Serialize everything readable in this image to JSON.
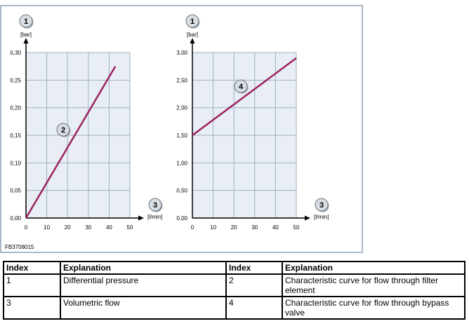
{
  "colors": {
    "frame": "#a9b7c6",
    "plot_bg": "#e8eef4",
    "grid": "#9fb0c4",
    "axis": "#000000",
    "curve": "#9b2262",
    "callout_fill": "#d8dde3",
    "callout_stroke": "#6d747c"
  },
  "figure_code": "FB3708015",
  "chart_data": [
    {
      "type": "line",
      "title": "",
      "ylabel_callout": "1",
      "yunit": "[bar]",
      "xlabel_callout": "3",
      "xunit": "[l/min]",
      "xlim": [
        0,
        50
      ],
      "ylim": [
        0,
        0.3
      ],
      "xticks": [
        "0",
        "10",
        "20",
        "30",
        "40",
        "50"
      ],
      "yticks": [
        "0,00",
        "0,05",
        "0,10",
        "0,15",
        "0,20",
        "0,25",
        "0,30"
      ],
      "grid": true,
      "series": [
        {
          "callout": "2",
          "x": [
            0,
            43
          ],
          "y": [
            0,
            0.275
          ]
        }
      ]
    },
    {
      "type": "line",
      "title": "",
      "ylabel_callout": "1",
      "yunit": "[bar]",
      "xlabel_callout": "3",
      "xunit": "[l/min]",
      "xlim": [
        0,
        50
      ],
      "ylim": [
        0,
        3.0
      ],
      "xticks": [
        "0",
        "10",
        "20",
        "30",
        "40",
        "50"
      ],
      "yticks": [
        "0,00",
        "0,50",
        "1,00",
        "1,50",
        "2,00",
        "2,50",
        "3,00"
      ],
      "grid": true,
      "series": [
        {
          "callout": "4",
          "x": [
            0,
            50
          ],
          "y": [
            1.5,
            2.9
          ]
        }
      ]
    }
  ],
  "table": {
    "headers": [
      "Index",
      "Explanation",
      "Index",
      "Explanation"
    ],
    "rows": [
      [
        "1",
        "Differential pressure",
        "2",
        "Characteristic curve for flow through filter element"
      ],
      [
        "3",
        "Volumetric flow",
        "4",
        "Characteristic curve for flow through bypass valve"
      ]
    ]
  }
}
